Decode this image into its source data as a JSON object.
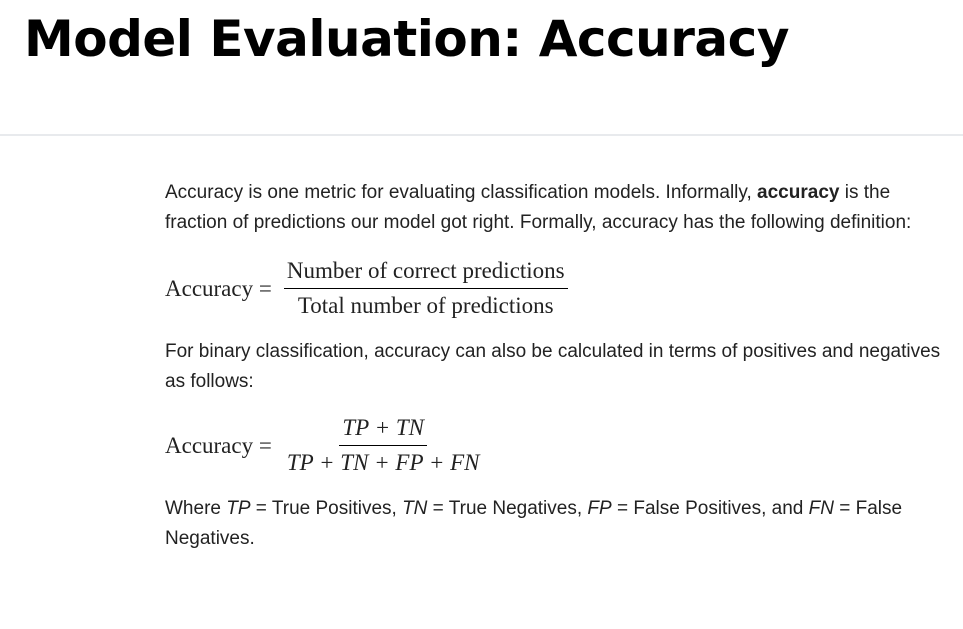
{
  "title": "Model Evaluation: Accuracy",
  "para1": {
    "before": "Accuracy is one metric for evaluating classification models. Informally, ",
    "bold": "accuracy",
    "after": " is the fraction of predictions our model got right. Formally, accuracy has the following definition:"
  },
  "eq1": {
    "lhs": "Accuracy =",
    "num": "Number of correct predictions",
    "den": "Total number of predictions"
  },
  "para2": "For binary classification, accuracy can also be calculated in terms of positives and negatives as follows:",
  "eq2": {
    "lhs": "Accuracy =",
    "num": "TP + TN",
    "den": "TP + TN + FP + FN"
  },
  "para3": {
    "w": "Where ",
    "tp": "TP",
    "t1": " = True Positives, ",
    "tn": "TN",
    "t2": " = True Negatives, ",
    "fp": "FP",
    "t3": " = False Positives, and ",
    "fn": "FN",
    "t4": " = False Negatives."
  }
}
